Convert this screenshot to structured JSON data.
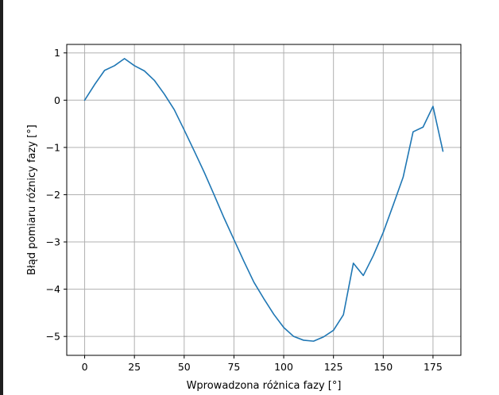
{
  "chart_data": {
    "type": "line",
    "title": "",
    "xlabel": "Wprowadzona różnica fazy [°]",
    "ylabel": "Błąd pomiaru różnicy fazy [°]",
    "xlim": [
      -9,
      189
    ],
    "ylim": [
      -5.4,
      1.18
    ],
    "grid": true,
    "legend": "none",
    "x_ticks": [
      0,
      25,
      50,
      75,
      100,
      125,
      150,
      175
    ],
    "x_tick_labels": [
      "0",
      "25",
      "50",
      "75",
      "100",
      "125",
      "150",
      "175"
    ],
    "y_ticks": [
      1,
      0,
      -1,
      -2,
      -3,
      -4,
      -5
    ],
    "y_tick_labels": [
      "1",
      "0",
      "−1",
      "−2",
      "−3",
      "−4",
      "−5"
    ],
    "line_color": "#1f77b4",
    "grid_color": "#b0b0b0",
    "series": [
      {
        "x": [
          0,
          5,
          10,
          15,
          20,
          25,
          30,
          35,
          40,
          45,
          50,
          55,
          60,
          65,
          70,
          75,
          80,
          85,
          90,
          95,
          100,
          105,
          110,
          115,
          120,
          125,
          130,
          135,
          140,
          145,
          150,
          155,
          160,
          165,
          170,
          175,
          180
        ],
        "y": [
          0.0,
          0.33,
          0.63,
          0.73,
          0.88,
          0.73,
          0.62,
          0.42,
          0.13,
          -0.2,
          -0.63,
          -1.07,
          -1.52,
          -2.0,
          -2.49,
          -2.95,
          -3.41,
          -3.85,
          -4.2,
          -4.53,
          -4.81,
          -5.0,
          -5.08,
          -5.1,
          -5.01,
          -4.87,
          -4.54,
          -3.45,
          -3.71,
          -3.29,
          -2.8,
          -2.22,
          -1.63,
          -0.67,
          -0.57,
          -0.13,
          -1.08
        ]
      }
    ]
  }
}
